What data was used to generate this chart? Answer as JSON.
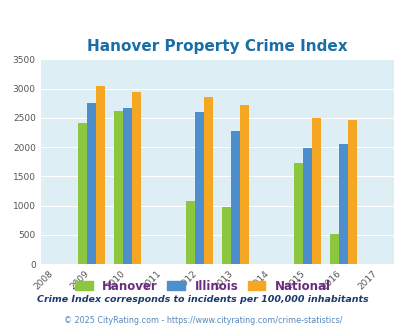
{
  "title": "Hanover Property Crime Index",
  "all_years": [
    2008,
    2009,
    2010,
    2011,
    2012,
    2013,
    2014,
    2015,
    2016,
    2017
  ],
  "data_years": [
    2009,
    2010,
    2012,
    2013,
    2015,
    2016
  ],
  "hanover": [
    2420,
    2620,
    1080,
    980,
    1720,
    510
  ],
  "illinois": [
    2750,
    2670,
    2600,
    2280,
    1980,
    2050
  ],
  "national": [
    3040,
    2950,
    2860,
    2720,
    2490,
    2470
  ],
  "color_hanover": "#8dc63f",
  "color_illinois": "#4d8fcc",
  "color_national": "#f5a623",
  "ylim": [
    0,
    3500
  ],
  "yticks": [
    0,
    500,
    1000,
    1500,
    2000,
    2500,
    3000,
    3500
  ],
  "bg_color": "#ddeef5",
  "title_color": "#1a6ea8",
  "bar_width": 0.25,
  "footnote1": "Crime Index corresponds to incidents per 100,000 inhabitants",
  "footnote2": "© 2025 CityRating.com - https://www.cityrating.com/crime-statistics/",
  "legend_labels": [
    "Hanover",
    "Illinois",
    "National"
  ],
  "legend_text_color": "#6b2c7f",
  "footnote1_color": "#1a3a6e",
  "footnote2_color": "#5588bb"
}
